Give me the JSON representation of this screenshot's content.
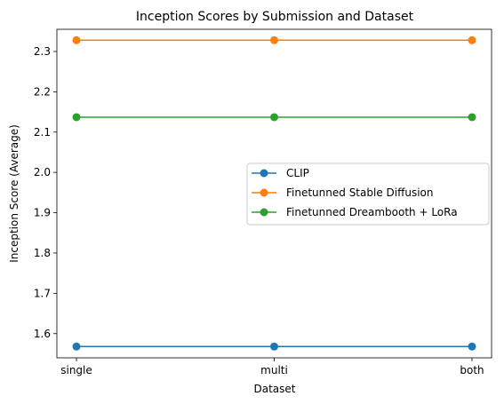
{
  "chart_data": {
    "type": "line",
    "title": "Inception Scores by Submission and Dataset",
    "xlabel": "Dataset",
    "ylabel": "Inception Score (Average)",
    "categories": [
      "single",
      "multi",
      "both"
    ],
    "ylim": [
      1.54,
      2.355
    ],
    "yticks": [
      1.6,
      1.7,
      1.8,
      1.9,
      2.0,
      2.1,
      2.2,
      2.3
    ],
    "ytick_labels": [
      "1.6",
      "1.7",
      "1.8",
      "1.9",
      "2.0",
      "2.1",
      "2.2",
      "2.3"
    ],
    "grid": false,
    "legend_position": "center-right",
    "series": [
      {
        "name": "CLIP",
        "color": "#1f77b4",
        "values": [
          1.568,
          1.568,
          1.568
        ]
      },
      {
        "name": "Finetunned Stable Diffusion",
        "color": "#ff7f0e",
        "values": [
          2.328,
          2.328,
          2.328
        ]
      },
      {
        "name": "Finetunned Dreambooth + LoRa",
        "color": "#2ca02c",
        "values": [
          2.137,
          2.137,
          2.137
        ]
      }
    ]
  }
}
